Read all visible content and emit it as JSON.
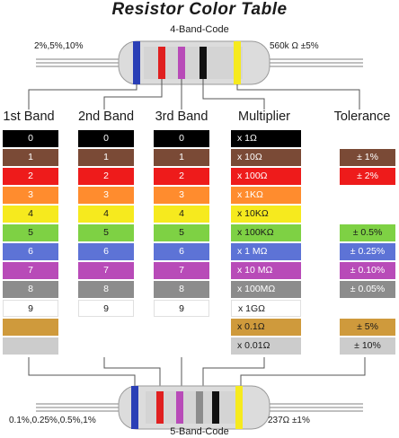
{
  "title": "Resistor Color Table",
  "top_resistor": {
    "code": "4-Band-Code",
    "left_note": "2%,5%,10%",
    "right_note": "560k Ω   ±5%"
  },
  "bottom_resistor": {
    "code": "5-Band-Code",
    "left_note": "0.1%,0.25%,0.5%,1%",
    "right_note": "237Ω  ±1%"
  },
  "headers": {
    "band1": "1st Band",
    "band2": "2nd Band",
    "band3": "3rd Band",
    "multiplier": "Multiplier",
    "tolerance": "Tolerance"
  },
  "colors": [
    {
      "name": "black",
      "hex": "#000000",
      "text": "#ffffff",
      "digit": "0",
      "multiplier": "x 1Ω",
      "tolerance": ""
    },
    {
      "name": "brown",
      "hex": "#7a4a36",
      "text": "#ffffff",
      "digit": "1",
      "multiplier": "x 10Ω",
      "tolerance": "± 1%"
    },
    {
      "name": "red",
      "hex": "#ee1b1b",
      "text": "#ffffff",
      "digit": "2",
      "multiplier": "x 100Ω",
      "tolerance": "± 2%"
    },
    {
      "name": "orange",
      "hex": "#ff8c2e",
      "text": "#ffffff",
      "digit": "3",
      "multiplier": "x 1KΩ",
      "tolerance": ""
    },
    {
      "name": "yellow",
      "hex": "#f6ea1e",
      "text": "#1a1a1a",
      "digit": "4",
      "multiplier": "x 10KΩ",
      "tolerance": ""
    },
    {
      "name": "green",
      "hex": "#7ed144",
      "text": "#1a1a1a",
      "digit": "5",
      "multiplier": "x 100KΩ",
      "tolerance": "± 0.5%"
    },
    {
      "name": "blue",
      "hex": "#5d73d6",
      "text": "#ffffff",
      "digit": "6",
      "multiplier": "x 1 MΩ",
      "tolerance": "± 0.25%"
    },
    {
      "name": "violet",
      "hex": "#b84bb8",
      "text": "#ffffff",
      "digit": "7",
      "multiplier": "x 10 MΩ",
      "tolerance": "± 0.10%"
    },
    {
      "name": "grey",
      "hex": "#8c8c8c",
      "text": "#ffffff",
      "digit": "8",
      "multiplier": "x 100MΩ",
      "tolerance": "± 0.05%"
    },
    {
      "name": "white",
      "hex": "#ffffff",
      "text": "#1a1a1a",
      "digit": "9",
      "multiplier": "x 1GΩ",
      "tolerance": ""
    },
    {
      "name": "gold",
      "hex": "#cf9a3c",
      "text": "#1a1a1a",
      "digit": "",
      "multiplier": "x 0.1Ω",
      "tolerance": "± 5%"
    },
    {
      "name": "silver",
      "hex": "#cccccc",
      "text": "#1a1a1a",
      "digit": "",
      "multiplier": "x 0.01Ω",
      "tolerance": "± 10%"
    }
  ]
}
